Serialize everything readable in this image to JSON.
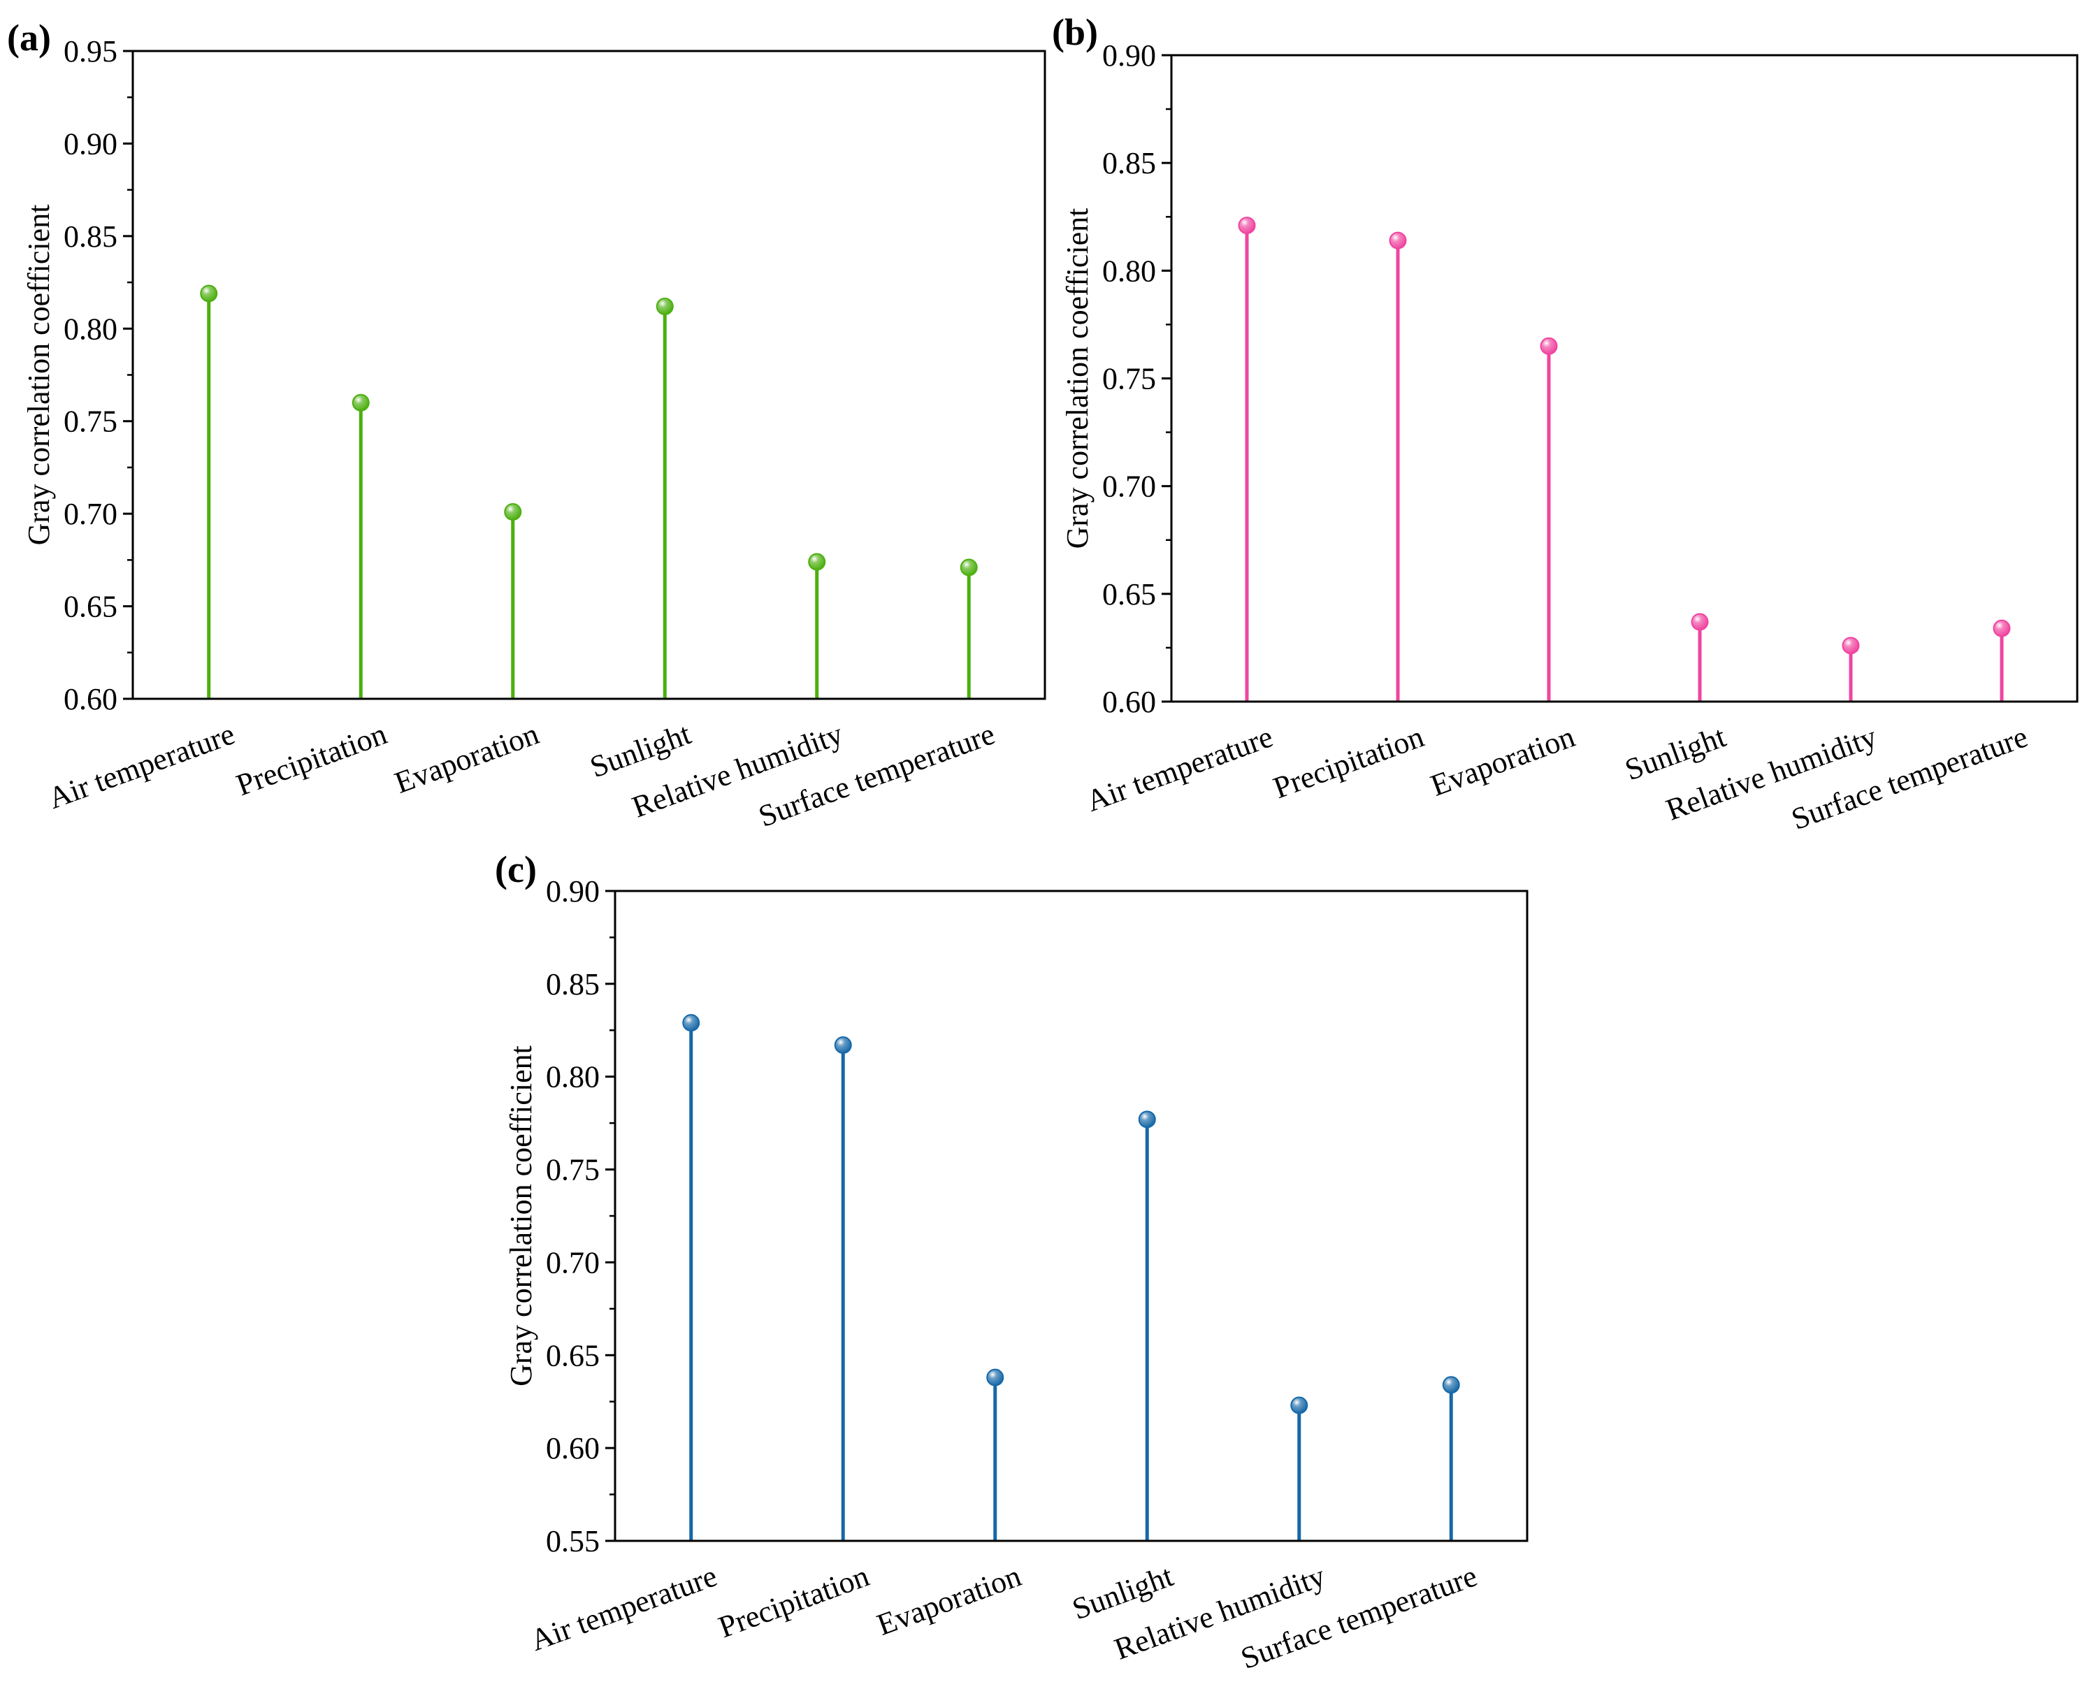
{
  "chart_data": [
    {
      "type": "lollipop",
      "panel_label": "(a)",
      "ylabel": "Gray correlation coefficient",
      "xlabel": "",
      "ylim": [
        0.6,
        0.95
      ],
      "yticks": [
        "0.60",
        "0.65",
        "0.70",
        "0.75",
        "0.80",
        "0.85",
        "0.90",
        "0.95"
      ],
      "categories": [
        "Air temperature",
        "Precipitation",
        "Evaporation",
        "Sunlight",
        "Relative humidity",
        "Surface temperature"
      ],
      "values": [
        0.819,
        0.76,
        0.701,
        0.812,
        0.674,
        0.671
      ],
      "color": "#4caf0f"
    },
    {
      "type": "lollipop",
      "panel_label": "(b)",
      "ylabel": "Gray correlation coefficient",
      "xlabel": "",
      "ylim": [
        0.6,
        0.9
      ],
      "yticks": [
        "0.60",
        "0.65",
        "0.70",
        "0.75",
        "0.80",
        "0.85",
        "0.90"
      ],
      "categories": [
        "Air temperature",
        "Precipitation",
        "Evaporation",
        "Sunlight",
        "Relative humidity",
        "Surface temperature"
      ],
      "values": [
        0.821,
        0.814,
        0.765,
        0.637,
        0.626,
        0.634
      ],
      "color": "#f0449f"
    },
    {
      "type": "lollipop",
      "panel_label": "(c)",
      "ylabel": "Gray correlation coefficient",
      "xlabel": "",
      "ylim": [
        0.55,
        0.9
      ],
      "yticks": [
        "0.55",
        "0.60",
        "0.65",
        "0.70",
        "0.75",
        "0.80",
        "0.85",
        "0.90"
      ],
      "categories": [
        "Air temperature",
        "Precipitation",
        "Evaporation",
        "Sunlight",
        "Relative humidity",
        "Surface temperature"
      ],
      "values": [
        0.829,
        0.817,
        0.638,
        0.777,
        0.623,
        0.634
      ],
      "color": "#1668a8"
    }
  ]
}
